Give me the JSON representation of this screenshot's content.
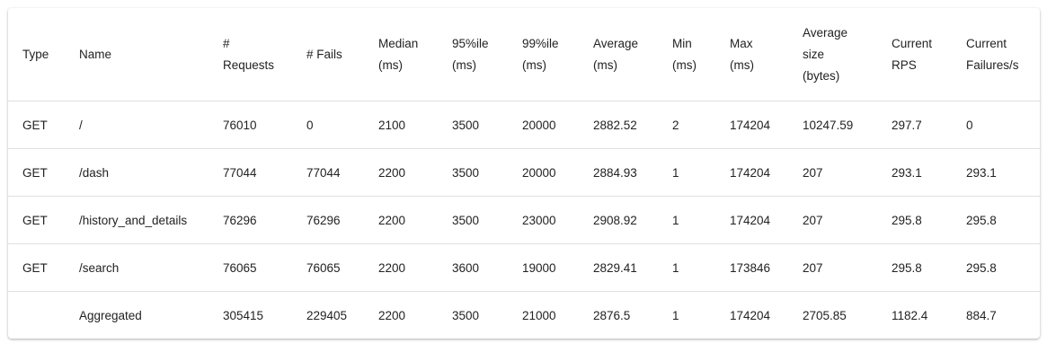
{
  "table": {
    "headers": [
      "Type",
      "Name",
      "# Requests",
      "# Fails",
      "Median (ms)",
      "95%ile (ms)",
      "99%ile (ms)",
      "Average (ms)",
      "Min (ms)",
      "Max (ms)",
      "Average size (bytes)",
      "Current RPS",
      "Current Failures/s"
    ],
    "rows": [
      [
        "GET",
        "/",
        "76010",
        "0",
        "2100",
        "3500",
        "20000",
        "2882.52",
        "2",
        "174204",
        "10247.59",
        "297.7",
        "0"
      ],
      [
        "GET",
        "/dash",
        "77044",
        "77044",
        "2200",
        "3500",
        "20000",
        "2884.93",
        "1",
        "174204",
        "207",
        "293.1",
        "293.1"
      ],
      [
        "GET",
        "/history_and_details",
        "76296",
        "76296",
        "2200",
        "3500",
        "23000",
        "2908.92",
        "1",
        "174204",
        "207",
        "295.8",
        "295.8"
      ],
      [
        "GET",
        "/search",
        "76065",
        "76065",
        "2200",
        "3600",
        "19000",
        "2829.41",
        "1",
        "173846",
        "207",
        "295.8",
        "295.8"
      ],
      [
        "",
        "Aggregated",
        "305415",
        "229405",
        "2200",
        "3500",
        "21000",
        "2876.5",
        "1",
        "174204",
        "2705.85",
        "1182.4",
        "884.7"
      ]
    ]
  }
}
